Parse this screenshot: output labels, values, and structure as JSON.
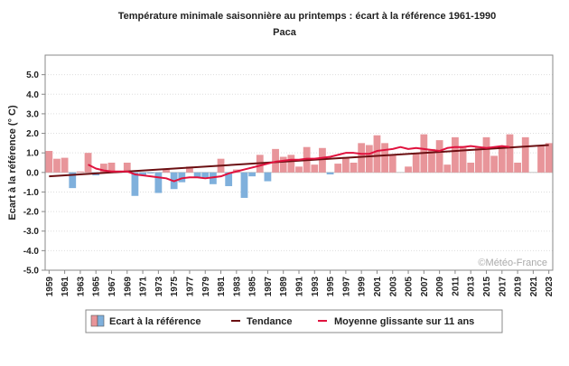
{
  "chart_data": {
    "type": "bar",
    "title": "Température minimale saisonnière au printemps : écart à la référence 1961-1990",
    "subtitle": "Paca",
    "ylabel": "Ecart à la référence (° C)",
    "xlabel": "",
    "ylim": [
      -5.0,
      6.0
    ],
    "yticks": [
      "5.0",
      "4.0",
      "3.0",
      "2.0",
      "1.0",
      "0.0",
      "-1.0",
      "-2.0",
      "-3.0",
      "-4.0",
      "-5.0"
    ],
    "ytick_values": [
      5,
      4,
      3,
      2,
      1,
      0,
      -1,
      -2,
      -3,
      -4,
      -5
    ],
    "grid": true,
    "legend_position": "bottom",
    "credit": "©Météo-France",
    "categories": [
      1959,
      1960,
      1961,
      1962,
      1963,
      1964,
      1965,
      1966,
      1967,
      1968,
      1969,
      1970,
      1971,
      1972,
      1973,
      1974,
      1975,
      1976,
      1977,
      1978,
      1979,
      1980,
      1981,
      1982,
      1983,
      1984,
      1985,
      1986,
      1987,
      1988,
      1989,
      1990,
      1991,
      1992,
      1993,
      1994,
      1995,
      1996,
      1997,
      1998,
      1999,
      2000,
      2001,
      2002,
      2003,
      2004,
      2005,
      2006,
      2007,
      2008,
      2009,
      2010,
      2011,
      2012,
      2013,
      2014,
      2015,
      2016,
      2017,
      2018,
      2019,
      2020,
      2021,
      2022,
      2023
    ],
    "xtick_labels": [
      "1959",
      "1961",
      "1963",
      "1965",
      "1967",
      "1969",
      "1971",
      "1973",
      "1975",
      "1977",
      "1979",
      "1981",
      "1983",
      "1985",
      "1987",
      "1989",
      "1991",
      "1993",
      "1995",
      "1997",
      "1999",
      "2001",
      "2003",
      "2005",
      "2007",
      "2009",
      "2011",
      "2013",
      "2015",
      "2017",
      "2019",
      "2021",
      "2023"
    ],
    "series": [
      {
        "name": "Ecart à la référence",
        "values": [
          1.1,
          0.7,
          0.75,
          -0.8,
          0.05,
          1.0,
          -0.15,
          0.45,
          0.5,
          0.0,
          0.5,
          -1.2,
          -0.15,
          -0.05,
          -1.05,
          0.2,
          -0.85,
          -0.5,
          0.3,
          -0.25,
          -0.3,
          -0.6,
          0.7,
          -0.7,
          0.15,
          -1.3,
          -0.2,
          0.9,
          -0.45,
          1.2,
          0.8,
          0.9,
          0.3,
          1.3,
          0.4,
          1.25,
          -0.1,
          0.45,
          0.75,
          0.5,
          1.5,
          1.4,
          1.9,
          1.5,
          0.9,
          0.0,
          0.3,
          1.0,
          1.95,
          1.2,
          1.65,
          0.4,
          1.8,
          1.35,
          0.5,
          1.3,
          1.8,
          0.85,
          1.35,
          1.95,
          0.5,
          1.8,
          0.0,
          1.4,
          1.5
        ],
        "color_positive": "#e8959a",
        "color_negative": "#7fb0dc"
      },
      {
        "name": "Tendance",
        "type": "line",
        "start": [
          1959,
          -0.2
        ],
        "end": [
          2023,
          1.4
        ],
        "color": "#6b0f12"
      },
      {
        "name": "Moyenne glissante sur 11 ans",
        "type": "line",
        "x": [
          1964,
          1965,
          1966,
          1967,
          1968,
          1969,
          1970,
          1971,
          1972,
          1973,
          1974,
          1975,
          1976,
          1977,
          1978,
          1979,
          1980,
          1981,
          1982,
          1983,
          1984,
          1985,
          1986,
          1987,
          1988,
          1989,
          1990,
          1991,
          1992,
          1993,
          1994,
          1995,
          1996,
          1997,
          1998,
          1999,
          2000,
          2001,
          2002,
          2003,
          2004,
          2005,
          2006,
          2007,
          2008,
          2009,
          2010,
          2011,
          2012,
          2013,
          2014,
          2015,
          2016,
          2017,
          2018
        ],
        "values": [
          0.4,
          0.2,
          0.1,
          0.05,
          0.05,
          0.05,
          -0.1,
          -0.15,
          -0.2,
          -0.25,
          -0.3,
          -0.45,
          -0.3,
          -0.25,
          -0.25,
          -0.3,
          -0.25,
          -0.2,
          -0.05,
          0.05,
          0.15,
          0.25,
          0.35,
          0.45,
          0.55,
          0.6,
          0.65,
          0.65,
          0.7,
          0.7,
          0.75,
          0.8,
          0.9,
          1.0,
          1.0,
          0.95,
          0.95,
          1.1,
          1.15,
          1.2,
          1.3,
          1.2,
          1.25,
          1.2,
          1.15,
          1.1,
          1.25,
          1.3,
          1.3,
          1.35,
          1.3,
          1.25,
          1.3,
          1.35,
          1.3
        ],
        "color": "#e0123e"
      }
    ]
  }
}
